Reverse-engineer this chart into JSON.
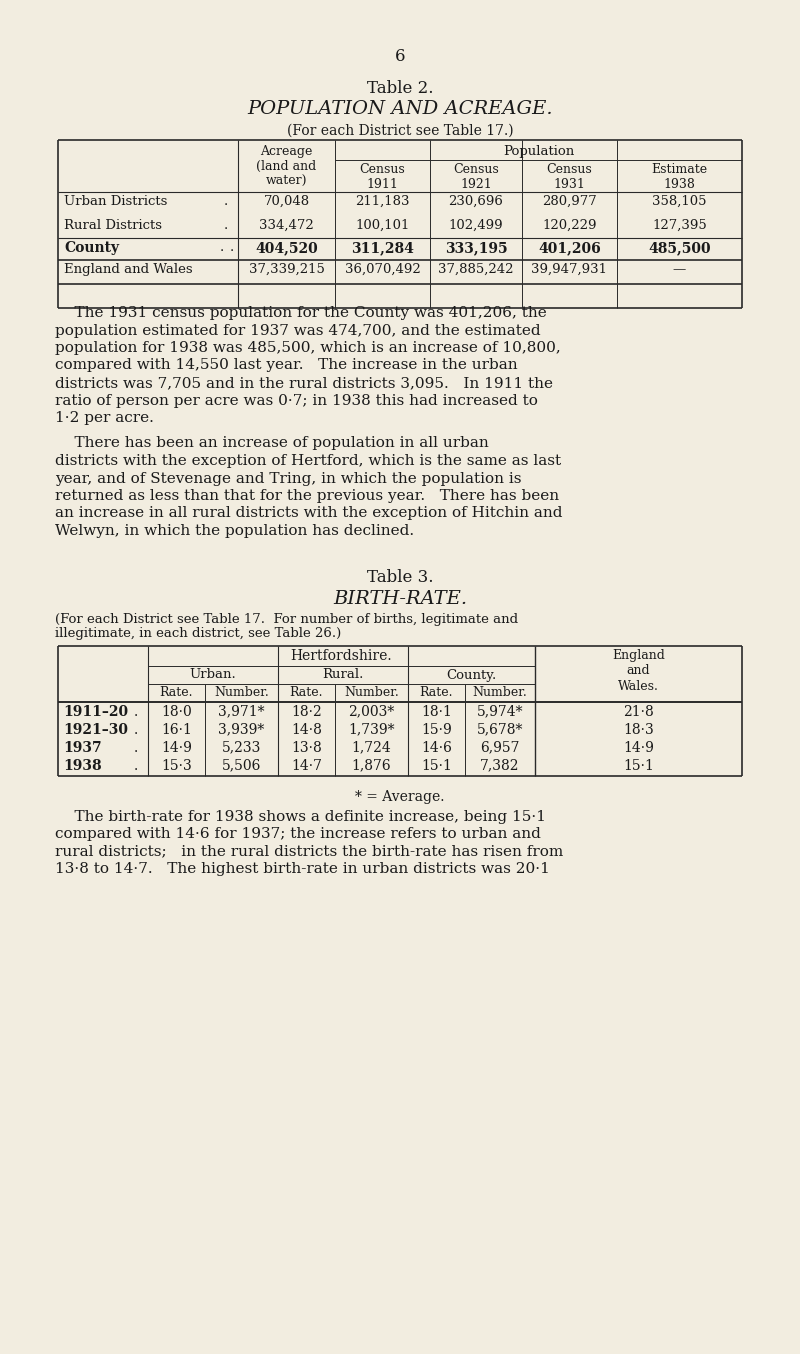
{
  "background_color": "#f2ede0",
  "page_number": "6",
  "table2_title": "Table 2.",
  "table2_subtitle": "POPULATION AND ACREAGE.",
  "table2_note": "(For each District see Table 17.)",
  "table2_group_header": "Population",
  "table2_rows": [
    [
      "Urban Districts",
      ".",
      "70,048",
      "211,183",
      "230,696",
      "280,977",
      "358,105"
    ],
    [
      "Rural Districts",
      ".",
      "334,472",
      "100,101",
      "102,499",
      "120,229",
      "127,395"
    ]
  ],
  "table2_county_row": [
    "County",
    ".",
    ".",
    "404,520",
    "311,284",
    "333,195",
    "401,206",
    "485,500"
  ],
  "table2_england_row": [
    "England and Wales",
    "37,339,215",
    "36,070,492",
    "37,885,242",
    "39,947,931",
    "—"
  ],
  "table3_title": "Table 3.",
  "table3_subtitle": "BIRTH-RATE.",
  "table3_note1": "(For each District see Table 17.  For number of births, legitimate and",
  "table3_note2": "illegitimate, in each district, see Table 26.)",
  "table3_rows": [
    [
      "1911–20",
      ".",
      "18·0",
      "3,971*",
      "18·2",
      "2,003*",
      "18·1",
      "5,974*",
      "21·8"
    ],
    [
      "1921–30",
      ".",
      "16·1",
      "3,939*",
      "14·8",
      "1,739*",
      "15·9",
      "5,678*",
      "18·3"
    ],
    [
      "1937",
      ".",
      "14·9",
      "5,233",
      "13·8",
      "1,724",
      "14·6",
      "6,957",
      "14·9"
    ],
    [
      "1938",
      ".",
      "15·3",
      "5,506",
      "14·7",
      "1,876",
      "15·1",
      "7,382",
      "15·1"
    ]
  ],
  "table3_footnote": "* = Average.",
  "para1_lines": [
    "    The 1931 census population for the County was 401,206, the",
    "population estimated for 1937 was 474,700, and the estimated",
    "population for 1938 was 485,500, which is an increase of 10,800,",
    "compared with 14,550 last year.   The increase in the urban",
    "districts was 7,705 and in the rural districts 3,095.   In 1911 the",
    "ratio of person per acre was 0·7; in 1938 this had increased to",
    "1·2 per acre."
  ],
  "para2_lines": [
    "    There has been an increase of population in all urban",
    "districts with the exception of Hertford, which is the same as last",
    "year, and of Stevenage and Tring, in which the population is",
    "returned as less than that for the previous year.   There has been",
    "an increase in all rural districts with the exception of Hitchin and",
    "Welwyn, in which the population has declined."
  ],
  "para3_lines": [
    "    The birth-rate for 1938 shows a definite increase, being 15·1",
    "compared with 14·6 for 1937; the increase refers to urban and",
    "rural districts;   in the rural districts the birth-rate has risen from",
    "13·8 to 14·7.   The highest birth-rate in urban districts was 20·1"
  ]
}
